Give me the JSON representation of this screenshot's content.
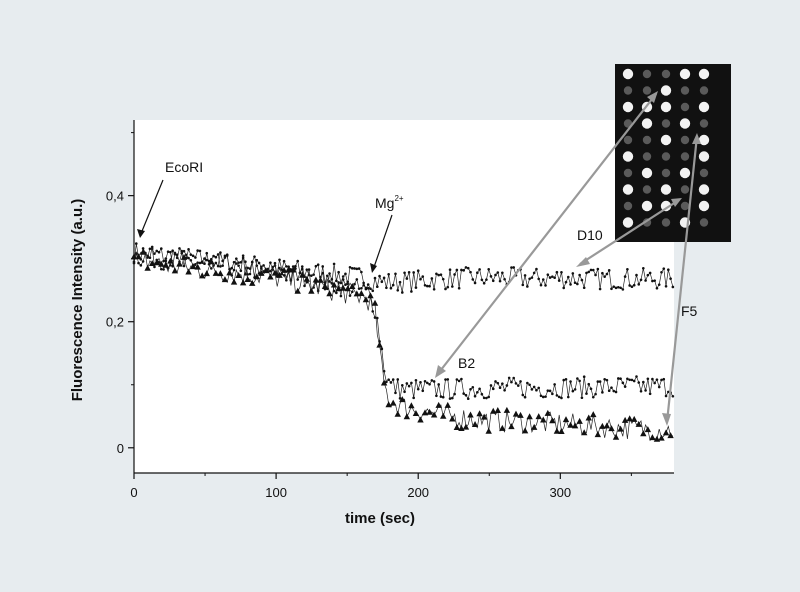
{
  "chart_data": {
    "type": "scatter",
    "xlabel": "time (sec)",
    "ylabel": "Fluorescence Intensity (a.u.)",
    "xlim": [
      0,
      380
    ],
    "ylim": [
      -0.04,
      0.52
    ],
    "x_ticks": [
      0,
      100,
      200,
      300
    ],
    "x_tick_labels": [
      "0",
      "100",
      "200",
      "300"
    ],
    "y_ticks": [
      0,
      0.2,
      0.4
    ],
    "y_tick_labels": [
      "0",
      "0,2",
      "0,4"
    ],
    "grid": false,
    "legend": "none",
    "annotations": {
      "enzyme": "EcoRI",
      "ion_base": "Mg",
      "ion_sup": "2+",
      "d10": "D10",
      "b2": "B2",
      "f5": "F5"
    },
    "series": [
      {
        "name": "D10",
        "marker": "dot",
        "x": [
          0,
          20,
          40,
          60,
          80,
          100,
          120,
          140,
          160,
          170,
          180,
          200,
          220,
          240,
          260,
          280,
          300,
          320,
          340,
          360,
          380
        ],
        "y": [
          0.31,
          0.305,
          0.3,
          0.295,
          0.29,
          0.285,
          0.28,
          0.275,
          0.27,
          0.265,
          0.262,
          0.265,
          0.268,
          0.27,
          0.27,
          0.268,
          0.27,
          0.268,
          0.268,
          0.268,
          0.268
        ]
      },
      {
        "name": "B2",
        "marker": "dot",
        "x": [
          0,
          20,
          40,
          60,
          80,
          100,
          120,
          140,
          160,
          165,
          170,
          172,
          174,
          176,
          178,
          180,
          185,
          190,
          200,
          220,
          240,
          260,
          280,
          300,
          320,
          340,
          360,
          380
        ],
        "y": [
          0.305,
          0.3,
          0.295,
          0.29,
          0.285,
          0.28,
          0.27,
          0.26,
          0.25,
          0.245,
          0.22,
          0.19,
          0.16,
          0.13,
          0.11,
          0.1,
          0.095,
          0.092,
          0.093,
          0.093,
          0.094,
          0.095,
          0.095,
          0.096,
          0.096,
          0.097,
          0.097,
          0.098
        ]
      },
      {
        "name": "F5",
        "marker": "triangle",
        "x": [
          0,
          20,
          40,
          60,
          80,
          100,
          120,
          140,
          160,
          165,
          170,
          172,
          174,
          176,
          178,
          180,
          185,
          190,
          200,
          220,
          240,
          260,
          280,
          300,
          320,
          340,
          360,
          380
        ],
        "y": [
          0.3,
          0.29,
          0.285,
          0.28,
          0.275,
          0.27,
          0.26,
          0.25,
          0.24,
          0.235,
          0.21,
          0.17,
          0.13,
          0.1,
          0.085,
          0.075,
          0.07,
          0.065,
          0.06,
          0.05,
          0.045,
          0.042,
          0.04,
          0.038,
          0.035,
          0.032,
          0.03,
          0.028
        ]
      }
    ]
  }
}
